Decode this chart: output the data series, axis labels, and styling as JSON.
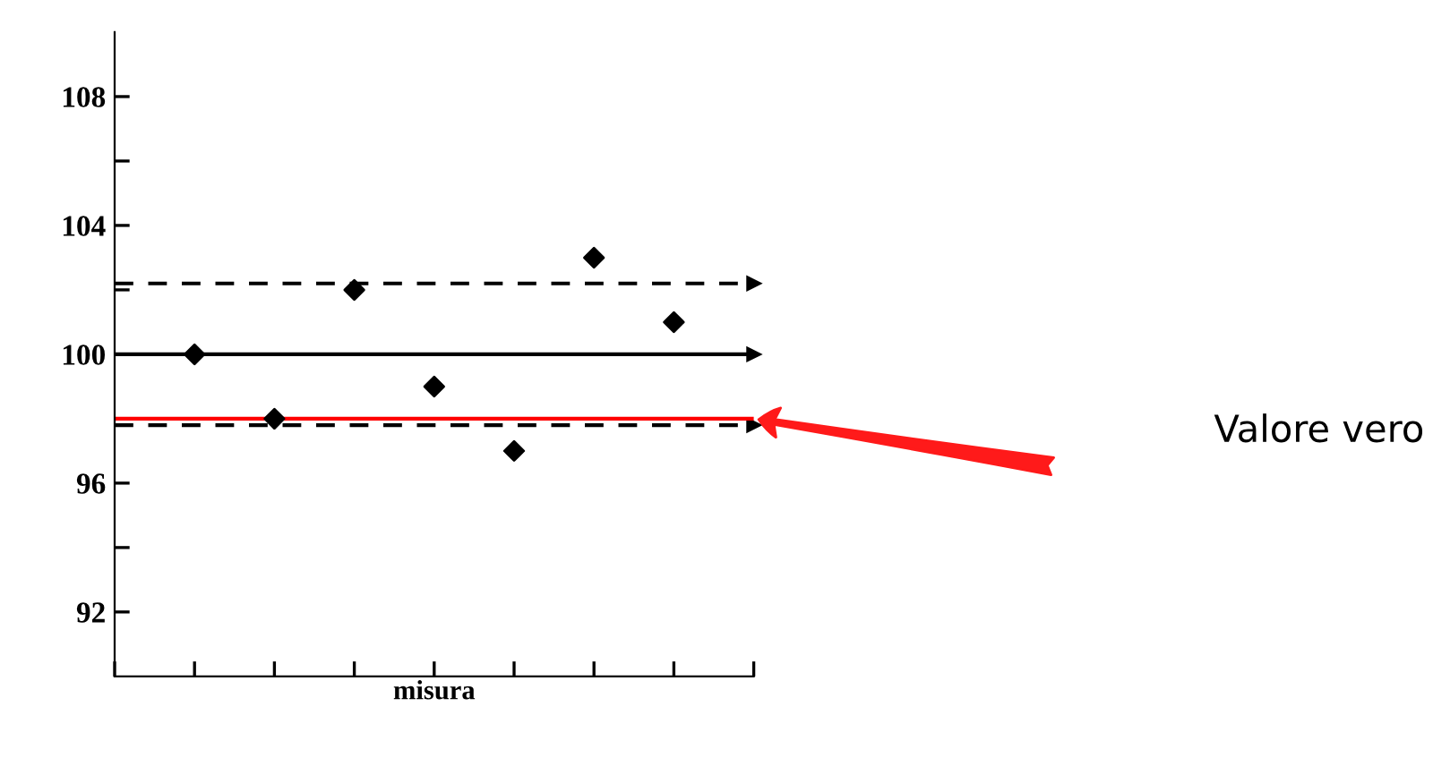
{
  "chart_data": {
    "type": "scatter",
    "xlabel": "misura",
    "categories": [
      null,
      null,
      null,
      null,
      null,
      null,
      null
    ],
    "series": [
      {
        "color": "#000000",
        "values": [
          100,
          98,
          102,
          99,
          97,
          103,
          101
        ]
      }
    ],
    "marker": "diamond",
    "grid": false,
    "ylim": [
      90,
      110
    ],
    "yticks": [
      92,
      {
        "value": 94,
        "label": null
      },
      96,
      {
        "value": 98,
        "label": null
      },
      100,
      {
        "value": 102,
        "label": null
      },
      104,
      {
        "value": 106,
        "label": null
      },
      108
    ],
    "ref_lines": [
      {
        "axis": "y",
        "value": 102.2,
        "color": "#000000",
        "line_style": "dashed"
      },
      {
        "axis": "y",
        "value": 100,
        "color": "#000000",
        "line_style": "solid"
      },
      {
        "axis": "y",
        "value": 97.8,
        "color": "#000000",
        "line_style": "dashed"
      },
      {
        "axis": "y",
        "value": 98,
        "color": "#ff0000",
        "line_style": "solid"
      }
    ],
    "annotations": [
      "Valore vero"
    ]
  }
}
